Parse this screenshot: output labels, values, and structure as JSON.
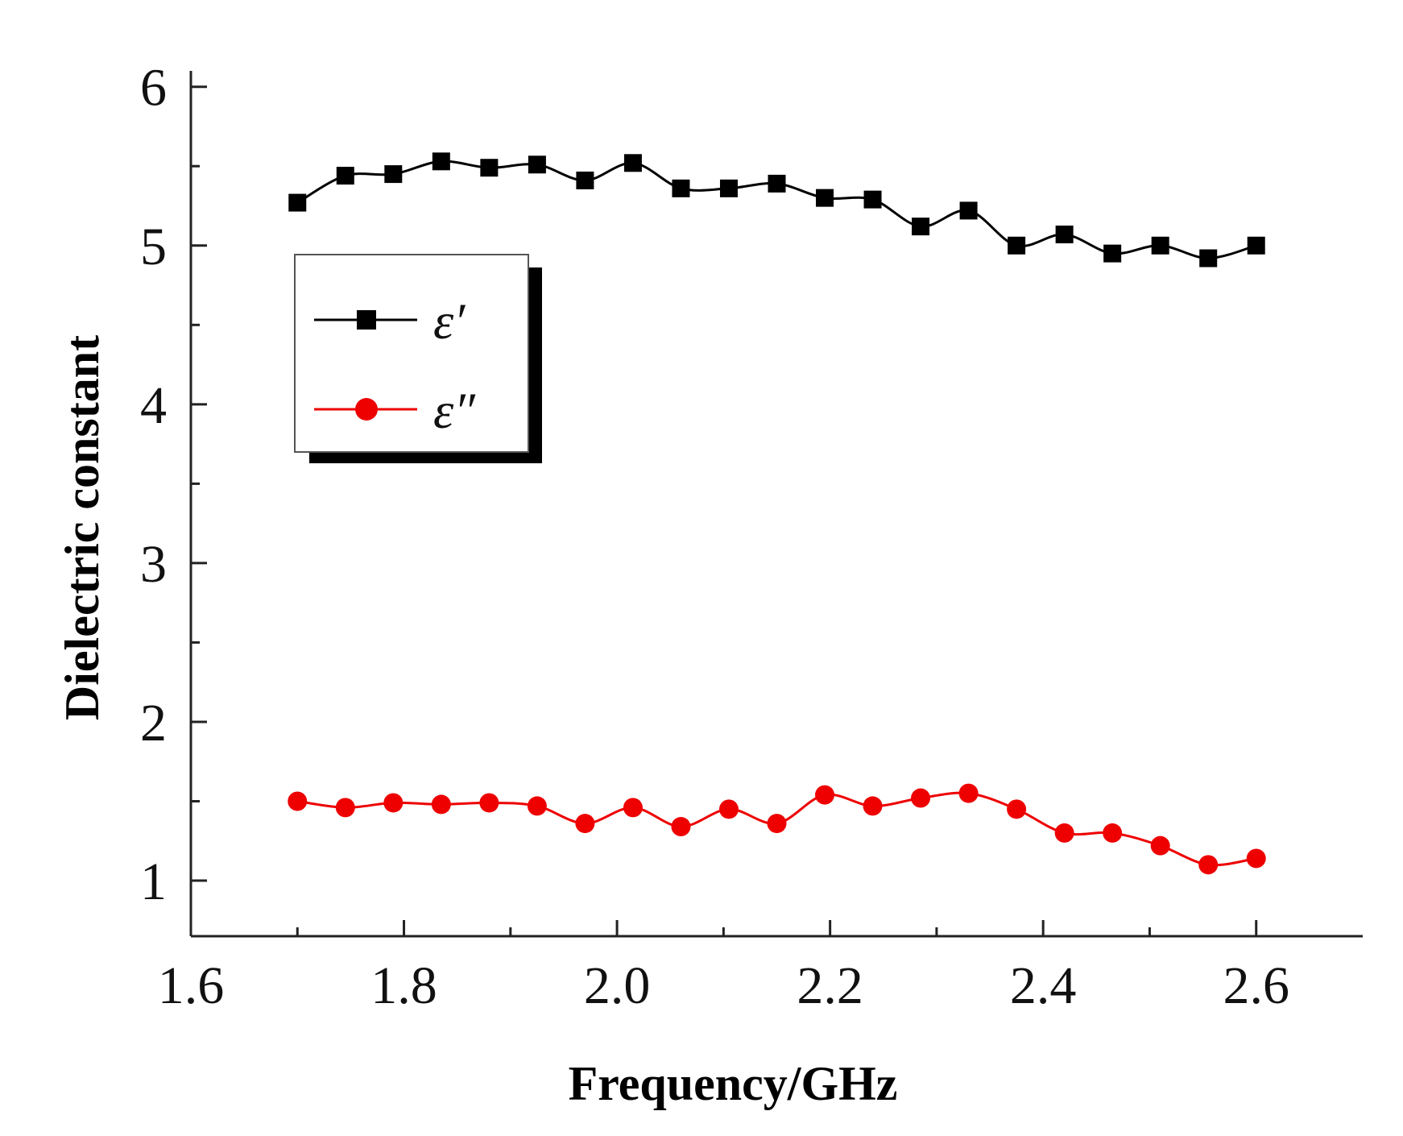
{
  "chart_data": {
    "type": "line",
    "title": "",
    "xlabel": "Frequency/GHz",
    "ylabel": "Dielectric constant",
    "xlim": [
      1.6,
      2.7
    ],
    "ylim": [
      0.65,
      6.1
    ],
    "x_ticks": [
      "1.6",
      "1.8",
      "2.0",
      "2.2",
      "2.4",
      "2.6"
    ],
    "y_ticks": [
      "1",
      "2",
      "3",
      "4",
      "5",
      "6"
    ],
    "grid": false,
    "legend_position": "upper-left",
    "x": [
      1.7,
      1.745,
      1.79,
      1.835,
      1.88,
      1.925,
      1.97,
      2.015,
      2.06,
      2.105,
      2.15,
      2.195,
      2.24,
      2.285,
      2.33,
      2.375,
      2.42,
      2.465,
      2.51,
      2.555,
      2.6
    ],
    "series": [
      {
        "name": "ε′",
        "color": "#000000",
        "marker": "square",
        "values": [
          5.27,
          5.44,
          5.45,
          5.53,
          5.49,
          5.51,
          5.41,
          5.52,
          5.36,
          5.36,
          5.39,
          5.3,
          5.29,
          5.12,
          5.22,
          5.0,
          5.07,
          4.95,
          5.0,
          4.92,
          5.0
        ]
      },
      {
        "name": "ε″",
        "color": "#ee0000",
        "marker": "circle",
        "values": [
          1.5,
          1.46,
          1.49,
          1.48,
          1.49,
          1.47,
          1.36,
          1.46,
          1.34,
          1.45,
          1.36,
          1.54,
          1.47,
          1.52,
          1.55,
          1.45,
          1.3,
          1.3,
          1.22,
          1.1,
          1.14
        ]
      }
    ]
  }
}
